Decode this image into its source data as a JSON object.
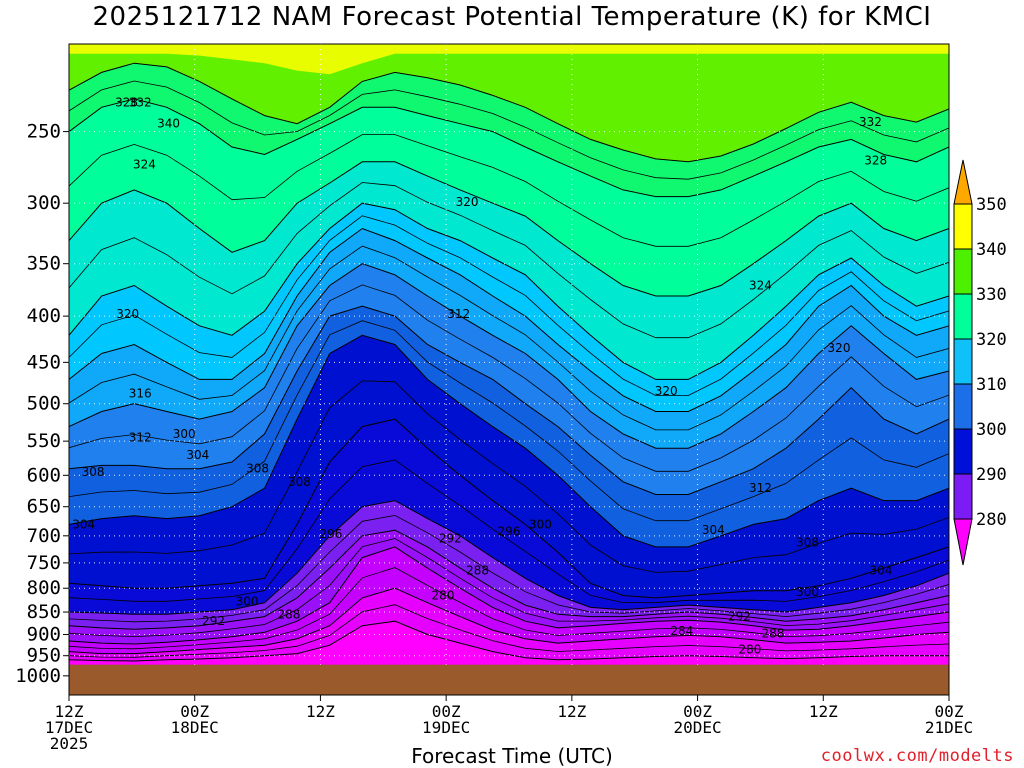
{
  "title": "2025121712 NAM Forecast Potential Temperature (K) for KMCI",
  "credit": "coolwx.com/modelts",
  "chart_data": {
    "type": "heatmap",
    "title": "2025121712 NAM Forecast Potential Temperature (K) for KMCI",
    "xlabel": "Forecast Time (UTC)",
    "ylabel": "",
    "y_scale": "log",
    "y_inverted": true,
    "ylim": [
      1050,
      200
    ],
    "y_ticks": [
      250,
      300,
      350,
      400,
      450,
      500,
      550,
      600,
      650,
      700,
      750,
      800,
      850,
      900,
      950,
      1000
    ],
    "x_ticks": [
      {
        "hour": 0,
        "line1": "12Z",
        "line2": "17DEC",
        "line3": "2025"
      },
      {
        "hour": 12,
        "line1": "00Z",
        "line2": "18DEC",
        "line3": ""
      },
      {
        "hour": 24,
        "line1": "12Z",
        "line2": "",
        "line3": ""
      },
      {
        "hour": 36,
        "line1": "00Z",
        "line2": "19DEC",
        "line3": ""
      },
      {
        "hour": 48,
        "line1": "12Z",
        "line2": "",
        "line3": ""
      },
      {
        "hour": 60,
        "line1": "00Z",
        "line2": "20DEC",
        "line3": ""
      },
      {
        "hour": 72,
        "line1": "12Z",
        "line2": "",
        "line3": ""
      },
      {
        "hour": 84,
        "line1": "00Z",
        "line2": "21DEC",
        "line3": ""
      }
    ],
    "xlim_hours": [
      0,
      84
    ],
    "grid": true,
    "surface_fill_color": "#9a5a2c",
    "colorbar": {
      "levels": [
        280,
        290,
        300,
        310,
        320,
        330,
        340,
        350
      ],
      "colors": [
        "#ff00ff",
        "#c000ff",
        "#7b1cf5",
        "#0010d8",
        "#1c6fe8",
        "#00c0ff",
        "#00ff9a",
        "#4cf000",
        "#ffff00",
        "#ffa800"
      ],
      "labels": [
        "280",
        "290",
        "300",
        "310",
        "320",
        "330",
        "340",
        "350"
      ]
    },
    "isentropes": [
      {
        "theta": 280,
        "p": [
          960,
          962,
          963,
          960,
          958,
          955,
          950,
          945,
          925,
          880,
          870,
          900,
          920,
          940,
          955,
          960,
          958,
          955,
          952,
          950,
          952,
          955,
          957,
          955,
          952,
          950,
          950,
          950
        ]
      },
      {
        "theta": 284,
        "p": [
          940,
          945,
          945,
          940,
          935,
          930,
          925,
          910,
          880,
          820,
          800,
          830,
          860,
          890,
          910,
          920,
          915,
          910,
          905,
          902,
          905,
          912,
          920,
          918,
          915,
          908,
          900,
          895
        ]
      },
      {
        "theta": 288,
        "p": [
          915,
          920,
          922,
          918,
          912,
          905,
          895,
          870,
          830,
          740,
          720,
          760,
          800,
          840,
          870,
          885,
          880,
          875,
          870,
          868,
          872,
          880,
          890,
          888,
          880,
          870,
          860,
          850
        ]
      },
      {
        "theta": 292,
        "p": [
          880,
          885,
          888,
          885,
          880,
          870,
          860,
          820,
          760,
          700,
          690,
          720,
          760,
          800,
          835,
          855,
          860,
          860,
          855,
          850,
          855,
          862,
          870,
          865,
          858,
          845,
          830,
          815
        ]
      },
      {
        "theta": 296,
        "p": [
          850,
          852,
          855,
          855,
          850,
          845,
          830,
          770,
          700,
          650,
          640,
          670,
          700,
          740,
          780,
          815,
          840,
          845,
          840,
          835,
          840,
          845,
          850,
          840,
          830,
          815,
          795,
          770
        ]
      },
      {
        "theta": 300,
        "p": [
          790,
          795,
          800,
          800,
          795,
          790,
          780,
          680,
          580,
          530,
          520,
          560,
          600,
          640,
          680,
          730,
          790,
          815,
          820,
          815,
          810,
          805,
          805,
          795,
          780,
          760,
          740,
          720
        ]
      },
      {
        "theta": 304,
        "p": [
          680,
          670,
          665,
          670,
          665,
          650,
          620,
          520,
          440,
          420,
          430,
          470,
          500,
          530,
          560,
          600,
          650,
          700,
          720,
          720,
          700,
          680,
          670,
          640,
          620,
          640,
          640,
          620
        ]
      },
      {
        "theta": 308,
        "p": [
          590,
          585,
          585,
          590,
          590,
          580,
          540,
          460,
          400,
          390,
          400,
          430,
          450,
          470,
          500,
          530,
          570,
          610,
          630,
          630,
          610,
          590,
          560,
          520,
          480,
          520,
          540,
          520
        ]
      },
      {
        "theta": 312,
        "p": [
          530,
          510,
          500,
          510,
          520,
          510,
          480,
          410,
          370,
          350,
          360,
          380,
          400,
          420,
          440,
          470,
          510,
          540,
          560,
          560,
          540,
          510,
          480,
          440,
          410,
          440,
          470,
          460
        ]
      },
      {
        "theta": 316,
        "p": [
          470,
          440,
          430,
          450,
          470,
          470,
          440,
          380,
          340,
          320,
          330,
          345,
          360,
          380,
          400,
          430,
          460,
          490,
          510,
          510,
          490,
          460,
          430,
          390,
          370,
          400,
          420,
          410
        ]
      },
      {
        "theta": 320,
        "p": [
          420,
          380,
          370,
          390,
          410,
          420,
          395,
          350,
          320,
          300,
          305,
          320,
          330,
          345,
          360,
          390,
          420,
          450,
          470,
          470,
          450,
          420,
          390,
          360,
          345,
          370,
          390,
          380
        ]
      },
      {
        "theta": 324,
        "p": [
          330,
          300,
          290,
          300,
          320,
          340,
          330,
          300,
          285,
          270,
          270,
          280,
          290,
          300,
          310,
          330,
          350,
          370,
          380,
          380,
          370,
          350,
          330,
          310,
          300,
          320,
          330,
          320
        ]
      },
      {
        "theta": 328,
        "p": [
          250,
          235,
          230,
          235,
          245,
          260,
          265,
          255,
          245,
          235,
          235,
          240,
          245,
          250,
          260,
          270,
          280,
          290,
          295,
          295,
          290,
          280,
          270,
          260,
          255,
          265,
          270,
          260
        ]
      },
      {
        "theta": 332,
        "p": [
          225,
          215,
          210,
          212,
          220,
          230,
          240,
          245,
          235,
          220,
          215,
          218,
          222,
          228,
          235,
          245,
          255,
          262,
          268,
          270,
          266,
          258,
          248,
          238,
          232,
          240,
          244,
          236
        ]
      }
    ],
    "contour_labels": [
      {
        "theta": "332",
        "hour": 6.8,
        "p": 232
      },
      {
        "theta": "328",
        "hour": 5.5,
        "p": 232
      },
      {
        "theta": "340",
        "hour": 9.5,
        "p": 245
      },
      {
        "theta": "324",
        "hour": 7.2,
        "p": 272
      },
      {
        "theta": "332",
        "hour": 76.5,
        "p": 244
      },
      {
        "theta": "328",
        "hour": 77.0,
        "p": 269
      },
      {
        "theta": "320",
        "hour": 38.0,
        "p": 299
      },
      {
        "theta": "320",
        "hour": 5.6,
        "p": 398
      },
      {
        "theta": "312",
        "hour": 37.2,
        "p": 398
      },
      {
        "theta": "324",
        "hour": 66.0,
        "p": 370
      },
      {
        "theta": "320",
        "hour": 73.5,
        "p": 434
      },
      {
        "theta": "320",
        "hour": 57.0,
        "p": 484
      },
      {
        "theta": "316",
        "hour": 6.8,
        "p": 487
      },
      {
        "theta": "312",
        "hour": 6.8,
        "p": 545
      },
      {
        "theta": "300",
        "hour": 11.0,
        "p": 540
      },
      {
        "theta": "304",
        "hour": 12.3,
        "p": 570
      },
      {
        "theta": "308",
        "hour": 18.0,
        "p": 590
      },
      {
        "theta": "308",
        "hour": 22.0,
        "p": 610
      },
      {
        "theta": "308",
        "hour": 2.3,
        "p": 595
      },
      {
        "theta": "312",
        "hour": 66.0,
        "p": 620
      },
      {
        "theta": "304",
        "hour": 1.4,
        "p": 680
      },
      {
        "theta": "300",
        "hour": 45.0,
        "p": 680
      },
      {
        "theta": "296",
        "hour": 25.0,
        "p": 697
      },
      {
        "theta": "292",
        "hour": 36.4,
        "p": 705
      },
      {
        "theta": "296",
        "hour": 42.0,
        "p": 692
      },
      {
        "theta": "304",
        "hour": 61.5,
        "p": 690
      },
      {
        "theta": "308",
        "hour": 70.5,
        "p": 712
      },
      {
        "theta": "304",
        "hour": 77.5,
        "p": 765
      },
      {
        "theta": "288",
        "hour": 39.0,
        "p": 765
      },
      {
        "theta": "280",
        "hour": 35.7,
        "p": 815
      },
      {
        "theta": "300",
        "hour": 17.0,
        "p": 828
      },
      {
        "theta": "288",
        "hour": 21.0,
        "p": 855
      },
      {
        "theta": "292",
        "hour": 13.8,
        "p": 870
      },
      {
        "theta": "300",
        "hour": 70.5,
        "p": 808
      },
      {
        "theta": "292",
        "hour": 64.0,
        "p": 860
      },
      {
        "theta": "284",
        "hour": 58.5,
        "p": 892
      },
      {
        "theta": "288",
        "hour": 67.2,
        "p": 898
      },
      {
        "theta": "280",
        "hour": 65.0,
        "p": 935
      }
    ]
  }
}
